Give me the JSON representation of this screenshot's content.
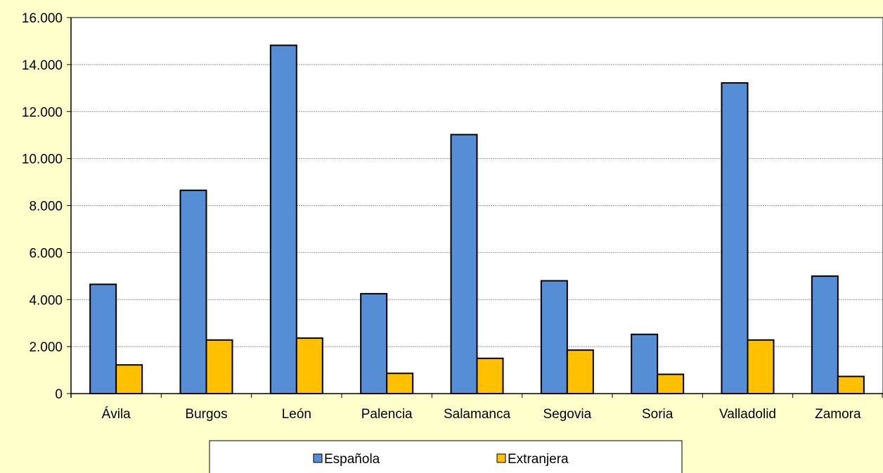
{
  "chart_data": {
    "type": "bar",
    "categories": [
      "Ávila",
      "Burgos",
      "León",
      "Palencia",
      "Salamanca",
      "Segovia",
      "Soria",
      "Valladolid",
      "Zamora"
    ],
    "series": [
      {
        "name": "Española",
        "color": "#558ED5",
        "values": [
          4650,
          8650,
          14820,
          4250,
          11020,
          4800,
          2520,
          13220,
          5000
        ]
      },
      {
        "name": "Extranjera",
        "color": "#FFC000",
        "values": [
          1220,
          2280,
          2360,
          860,
          1500,
          1850,
          820,
          2280,
          730
        ]
      }
    ],
    "ylim": [
      0,
      16000
    ],
    "yticks": [
      0,
      2000,
      4000,
      6000,
      8000,
      10000,
      12000,
      14000,
      16000
    ],
    "ytick_labels": [
      "0",
      "2.000",
      "4.000",
      "6.000",
      "8.000",
      "10.000",
      "12.000",
      "14.000",
      "16.000"
    ],
    "grid": true,
    "legend_position": "bottom",
    "background_color": "#FFFFCC",
    "plot_background_color": "#FFFFFF"
  }
}
